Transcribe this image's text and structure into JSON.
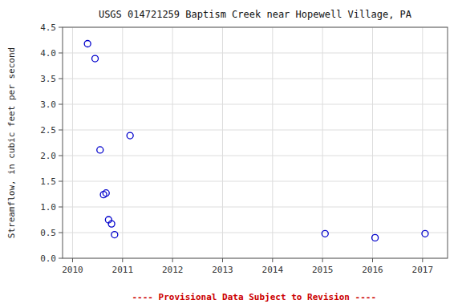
{
  "chart_data": {
    "type": "scatter",
    "title": "USGS 014721259 Baptism Creek near Hopewell Village, PA",
    "y_label": "Streamflow, in cubic feet per second",
    "annotations": [
      {
        "text": "---- Provisional Data Subject to Revision ----",
        "color": "#cc0000"
      }
    ],
    "x": [
      2010.3,
      2010.45,
      2010.55,
      2010.62,
      2010.67,
      2010.72,
      2010.78,
      2010.84,
      2011.15,
      2015.05,
      2016.05,
      2017.05
    ],
    "values": [
      4.18,
      3.89,
      2.11,
      1.24,
      1.27,
      0.75,
      0.67,
      0.46,
      2.39,
      0.48,
      0.4,
      0.48
    ],
    "color": "#0000cc",
    "marker": "open-circle",
    "xlim": [
      2009.8,
      2017.5
    ],
    "ylim": [
      0.0,
      4.5
    ],
    "xticks": [
      2010,
      2011,
      2012,
      2013,
      2014,
      2015,
      2016,
      2017
    ],
    "yticks": [
      {
        "value": 0.0,
        "label": "0.0"
      },
      0.5,
      {
        "value": 1.0,
        "label": "1.0"
      },
      1.5,
      {
        "value": 2.0,
        "label": "2.0"
      },
      2.5,
      {
        "value": 3.0,
        "label": "3.0"
      },
      3.5,
      {
        "value": 4.0,
        "label": "4.0"
      },
      4.5
    ],
    "grid": true
  }
}
